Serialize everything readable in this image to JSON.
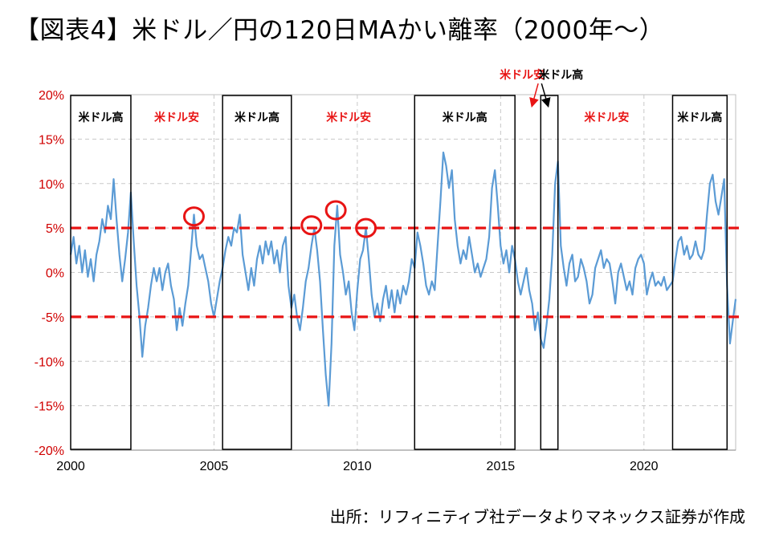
{
  "title": "【図表4】米ドル／円の120日MAかい離率（2000年～）",
  "source": "出所：リフィニティブ社データよりマネックス証券が作成",
  "chart_data": {
    "type": "line",
    "xlim": [
      2000,
      2023.2
    ],
    "ylim": [
      -20,
      20
    ],
    "x_ticks": [
      2000,
      2005,
      2010,
      2015,
      2020
    ],
    "y_ticks": [
      {
        "value": 20,
        "label": "20%"
      },
      {
        "value": 15,
        "label": "15%"
      },
      {
        "value": 10,
        "label": "10%"
      },
      {
        "value": 5,
        "label": "5%"
      },
      {
        "value": 0,
        "label": "0%"
      },
      {
        "value": -5,
        "label": "-5%"
      },
      {
        "value": -10,
        "label": "-10%"
      },
      {
        "value": -15,
        "label": "-15%"
      },
      {
        "value": -20,
        "label": "-20%"
      }
    ],
    "grid": true,
    "colors": {
      "line": "#5b9bd5",
      "threshold": "#e81414",
      "label_high": "#000000",
      "label_low": "#e81414",
      "circle": "#e81414",
      "axis_text": "#d00000"
    },
    "thresholds": [
      5,
      -5
    ],
    "series": [
      {
        "values": [
          [
            2000.0,
            2.0
          ],
          [
            2000.1,
            4.0
          ],
          [
            2000.2,
            1.0
          ],
          [
            2000.3,
            3.0
          ],
          [
            2000.4,
            0.0
          ],
          [
            2000.5,
            2.5
          ],
          [
            2000.6,
            -0.5
          ],
          [
            2000.7,
            1.5
          ],
          [
            2000.8,
            -1.0
          ],
          [
            2000.9,
            2.0
          ],
          [
            2001.0,
            3.5
          ],
          [
            2001.1,
            6.0
          ],
          [
            2001.2,
            4.5
          ],
          [
            2001.3,
            7.5
          ],
          [
            2001.4,
            6.0
          ],
          [
            2001.5,
            10.5
          ],
          [
            2001.6,
            6.0
          ],
          [
            2001.7,
            2.0
          ],
          [
            2001.8,
            -1.0
          ],
          [
            2001.9,
            1.5
          ],
          [
            2002.0,
            4.5
          ],
          [
            2002.1,
            9.0
          ],
          [
            2002.2,
            3.5
          ],
          [
            2002.3,
            -1.5
          ],
          [
            2002.4,
            -5.0
          ],
          [
            2002.5,
            -9.5
          ],
          [
            2002.6,
            -6.0
          ],
          [
            2002.7,
            -4.0
          ],
          [
            2002.8,
            -1.5
          ],
          [
            2002.9,
            0.5
          ],
          [
            2003.0,
            -1.0
          ],
          [
            2003.1,
            0.5
          ],
          [
            2003.2,
            -2.0
          ],
          [
            2003.3,
            0.0
          ],
          [
            2003.4,
            1.0
          ],
          [
            2003.5,
            -1.5
          ],
          [
            2003.6,
            -3.0
          ],
          [
            2003.7,
            -6.5
          ],
          [
            2003.8,
            -4.0
          ],
          [
            2003.9,
            -6.0
          ],
          [
            2004.0,
            -3.5
          ],
          [
            2004.1,
            -1.5
          ],
          [
            2004.2,
            2.5
          ],
          [
            2004.3,
            6.5
          ],
          [
            2004.4,
            3.0
          ],
          [
            2004.5,
            1.5
          ],
          [
            2004.6,
            2.0
          ],
          [
            2004.7,
            0.5
          ],
          [
            2004.8,
            -1.0
          ],
          [
            2004.9,
            -3.5
          ],
          [
            2005.0,
            -5.0
          ],
          [
            2005.1,
            -3.0
          ],
          [
            2005.2,
            -1.0
          ],
          [
            2005.3,
            0.5
          ],
          [
            2005.4,
            2.5
          ],
          [
            2005.5,
            4.0
          ],
          [
            2005.6,
            3.0
          ],
          [
            2005.7,
            5.0
          ],
          [
            2005.8,
            4.5
          ],
          [
            2005.9,
            6.5
          ],
          [
            2006.0,
            2.0
          ],
          [
            2006.1,
            0.0
          ],
          [
            2006.2,
            -2.0
          ],
          [
            2006.3,
            0.5
          ],
          [
            2006.4,
            -1.5
          ],
          [
            2006.5,
            1.5
          ],
          [
            2006.6,
            3.0
          ],
          [
            2006.7,
            1.0
          ],
          [
            2006.8,
            3.5
          ],
          [
            2006.9,
            2.0
          ],
          [
            2007.0,
            3.5
          ],
          [
            2007.1,
            1.0
          ],
          [
            2007.2,
            2.5
          ],
          [
            2007.3,
            0.0
          ],
          [
            2007.4,
            3.0
          ],
          [
            2007.5,
            4.0
          ],
          [
            2007.6,
            -1.5
          ],
          [
            2007.7,
            -4.0
          ],
          [
            2007.8,
            -2.5
          ],
          [
            2007.9,
            -5.0
          ],
          [
            2008.0,
            -6.5
          ],
          [
            2008.1,
            -4.0
          ],
          [
            2008.2,
            -1.0
          ],
          [
            2008.3,
            0.5
          ],
          [
            2008.4,
            3.0
          ],
          [
            2008.5,
            5.0
          ],
          [
            2008.6,
            2.5
          ],
          [
            2008.7,
            -1.0
          ],
          [
            2008.8,
            -6.5
          ],
          [
            2008.9,
            -11.5
          ],
          [
            2009.0,
            -15.0
          ],
          [
            2009.1,
            -8.0
          ],
          [
            2009.2,
            3.0
          ],
          [
            2009.3,
            7.5
          ],
          [
            2009.4,
            2.0
          ],
          [
            2009.5,
            0.0
          ],
          [
            2009.6,
            -2.5
          ],
          [
            2009.7,
            -1.0
          ],
          [
            2009.8,
            -4.5
          ],
          [
            2009.9,
            -6.5
          ],
          [
            2010.0,
            -2.0
          ],
          [
            2010.1,
            1.5
          ],
          [
            2010.2,
            2.5
          ],
          [
            2010.3,
            5.0
          ],
          [
            2010.4,
            1.5
          ],
          [
            2010.5,
            -2.5
          ],
          [
            2010.6,
            -5.0
          ],
          [
            2010.7,
            -3.5
          ],
          [
            2010.8,
            -5.5
          ],
          [
            2010.9,
            -3.0
          ],
          [
            2011.0,
            -1.5
          ],
          [
            2011.1,
            -4.0
          ],
          [
            2011.2,
            -2.0
          ],
          [
            2011.3,
            -4.5
          ],
          [
            2011.4,
            -2.0
          ],
          [
            2011.5,
            -3.5
          ],
          [
            2011.6,
            -1.5
          ],
          [
            2011.7,
            -2.5
          ],
          [
            2011.8,
            -1.0
          ],
          [
            2011.9,
            1.5
          ],
          [
            2012.0,
            0.5
          ],
          [
            2012.1,
            4.5
          ],
          [
            2012.2,
            3.0
          ],
          [
            2012.3,
            1.0
          ],
          [
            2012.4,
            -1.5
          ],
          [
            2012.5,
            -2.5
          ],
          [
            2012.6,
            -1.0
          ],
          [
            2012.7,
            -2.0
          ],
          [
            2012.8,
            3.0
          ],
          [
            2012.9,
            8.0
          ],
          [
            2013.0,
            13.5
          ],
          [
            2013.1,
            12.0
          ],
          [
            2013.2,
            9.5
          ],
          [
            2013.3,
            11.5
          ],
          [
            2013.4,
            6.0
          ],
          [
            2013.5,
            3.0
          ],
          [
            2013.6,
            1.0
          ],
          [
            2013.7,
            2.5
          ],
          [
            2013.8,
            1.5
          ],
          [
            2013.9,
            4.0
          ],
          [
            2014.0,
            2.0
          ],
          [
            2014.1,
            0.0
          ],
          [
            2014.2,
            1.0
          ],
          [
            2014.3,
            -0.5
          ],
          [
            2014.4,
            0.5
          ],
          [
            2014.5,
            1.5
          ],
          [
            2014.6,
            4.0
          ],
          [
            2014.7,
            9.5
          ],
          [
            2014.8,
            11.5
          ],
          [
            2014.9,
            7.5
          ],
          [
            2015.0,
            3.0
          ],
          [
            2015.1,
            1.0
          ],
          [
            2015.2,
            2.5
          ],
          [
            2015.3,
            0.0
          ],
          [
            2015.4,
            3.0
          ],
          [
            2015.5,
            1.5
          ],
          [
            2015.6,
            -1.0
          ],
          [
            2015.7,
            -2.5
          ],
          [
            2015.8,
            -1.0
          ],
          [
            2015.9,
            0.5
          ],
          [
            2016.0,
            -2.0
          ],
          [
            2016.1,
            -3.5
          ],
          [
            2016.2,
            -6.5
          ],
          [
            2016.3,
            -4.5
          ],
          [
            2016.4,
            -7.5
          ],
          [
            2016.5,
            -8.5
          ],
          [
            2016.6,
            -6.0
          ],
          [
            2016.7,
            -3.0
          ],
          [
            2016.8,
            2.0
          ],
          [
            2016.9,
            10.0
          ],
          [
            2017.0,
            12.5
          ],
          [
            2017.1,
            3.0
          ],
          [
            2017.2,
            0.5
          ],
          [
            2017.3,
            -1.5
          ],
          [
            2017.4,
            1.0
          ],
          [
            2017.5,
            2.0
          ],
          [
            2017.6,
            -1.0
          ],
          [
            2017.7,
            -0.5
          ],
          [
            2017.8,
            1.5
          ],
          [
            2017.9,
            0.5
          ],
          [
            2018.0,
            -1.0
          ],
          [
            2018.1,
            -3.5
          ],
          [
            2018.2,
            -2.5
          ],
          [
            2018.3,
            0.5
          ],
          [
            2018.4,
            1.5
          ],
          [
            2018.5,
            2.5
          ],
          [
            2018.6,
            0.5
          ],
          [
            2018.7,
            1.5
          ],
          [
            2018.8,
            1.0
          ],
          [
            2018.9,
            -1.0
          ],
          [
            2019.0,
            -3.5
          ],
          [
            2019.1,
            0.0
          ],
          [
            2019.2,
            1.0
          ],
          [
            2019.3,
            -0.5
          ],
          [
            2019.4,
            -2.0
          ],
          [
            2019.5,
            -1.0
          ],
          [
            2019.6,
            -2.5
          ],
          [
            2019.7,
            0.5
          ],
          [
            2019.8,
            1.5
          ],
          [
            2019.9,
            2.0
          ],
          [
            2020.0,
            1.0
          ],
          [
            2020.1,
            -2.5
          ],
          [
            2020.2,
            -1.0
          ],
          [
            2020.3,
            0.0
          ],
          [
            2020.4,
            -1.5
          ],
          [
            2020.5,
            -1.0
          ],
          [
            2020.6,
            -1.5
          ],
          [
            2020.7,
            -0.5
          ],
          [
            2020.8,
            -2.0
          ],
          [
            2020.9,
            -1.5
          ],
          [
            2021.0,
            -1.0
          ],
          [
            2021.1,
            1.5
          ],
          [
            2021.2,
            3.5
          ],
          [
            2021.3,
            4.0
          ],
          [
            2021.4,
            2.0
          ],
          [
            2021.5,
            3.0
          ],
          [
            2021.6,
            1.5
          ],
          [
            2021.7,
            2.0
          ],
          [
            2021.8,
            3.5
          ],
          [
            2021.9,
            2.0
          ],
          [
            2022.0,
            1.5
          ],
          [
            2022.1,
            2.5
          ],
          [
            2022.2,
            6.5
          ],
          [
            2022.3,
            10.0
          ],
          [
            2022.4,
            11.0
          ],
          [
            2022.5,
            8.0
          ],
          [
            2022.6,
            6.5
          ],
          [
            2022.7,
            8.5
          ],
          [
            2022.8,
            10.5
          ],
          [
            2022.9,
            -1.5
          ],
          [
            2023.0,
            -8.0
          ],
          [
            2023.1,
            -5.5
          ],
          [
            2023.2,
            -3.0
          ]
        ]
      }
    ],
    "regions": [
      {
        "x0": 2000.0,
        "x1": 2002.1,
        "label": "米ドル高",
        "kind": "high"
      },
      {
        "x0": 2005.3,
        "x1": 2007.7,
        "label": "米ドル高",
        "kind": "high"
      },
      {
        "x0": 2012.0,
        "x1": 2015.5,
        "label": "米ドル高",
        "kind": "high"
      },
      {
        "x0": 2016.4,
        "x1": 2017.0,
        "label": "米ドル高",
        "kind": "high"
      },
      {
        "x0": 2021.0,
        "x1": 2022.9,
        "label": "米ドル高",
        "kind": "high"
      }
    ],
    "annotations": [
      {
        "text": "米ドル安",
        "x": 2003.7,
        "y": 17,
        "kind": "low"
      },
      {
        "text": "米ドル安",
        "x": 2009.7,
        "y": 17,
        "kind": "low"
      },
      {
        "text": "米ドル安",
        "x": 2018.7,
        "y": 17,
        "kind": "low"
      },
      {
        "text": "米ドル安",
        "x": 2015.75,
        "y": 21.8,
        "kind": "low",
        "arrow_to": [
          2016.1,
          18.8
        ]
      },
      {
        "text": "米ドル高",
        "x": 2017.1,
        "y": 21.8,
        "kind": "high",
        "arrow_to": [
          2016.65,
          18.8
        ]
      }
    ],
    "highlight_circles": [
      {
        "x": 2004.3,
        "y": 6.3
      },
      {
        "x": 2008.4,
        "y": 5.3
      },
      {
        "x": 2009.25,
        "y": 7.0
      },
      {
        "x": 2010.3,
        "y": 5.0
      }
    ]
  }
}
